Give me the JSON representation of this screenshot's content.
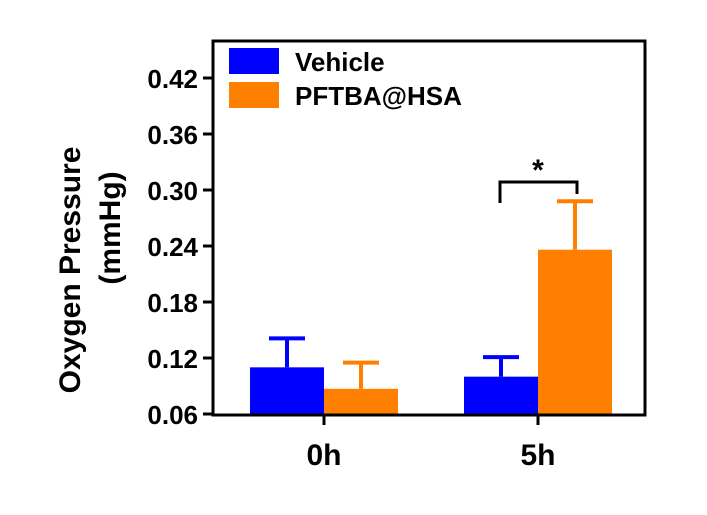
{
  "chart_data": {
    "type": "bar",
    "title": "",
    "xlabel": "",
    "ylabel": "Oxygen Pressure",
    "ylabel_units": "(mmHg)",
    "categories": [
      "0h",
      "5h"
    ],
    "ylim": [
      0.06,
      0.45
    ],
    "yticks": [
      "0.06",
      "0.12",
      "0.18",
      "0.24",
      "0.30",
      "0.36",
      "0.42"
    ],
    "ytick_values": [
      0.06,
      0.12,
      0.18,
      0.24,
      0.3,
      0.36,
      0.42
    ],
    "legend_position": "top-left",
    "series": [
      {
        "name": "Vehicle",
        "color": "#0000ff",
        "values": [
          0.11,
          0.1
        ],
        "error_upper": [
          0.141,
          0.121
        ]
      },
      {
        "name": "PFTBA@HSA",
        "color": "#ff8000",
        "values": [
          0.087,
          0.236
        ],
        "error_upper": [
          0.115,
          0.288
        ]
      }
    ],
    "annotations": [
      {
        "text": "*",
        "category": "5h",
        "between": [
          "Vehicle",
          "PFTBA@HSA"
        ]
      }
    ]
  }
}
